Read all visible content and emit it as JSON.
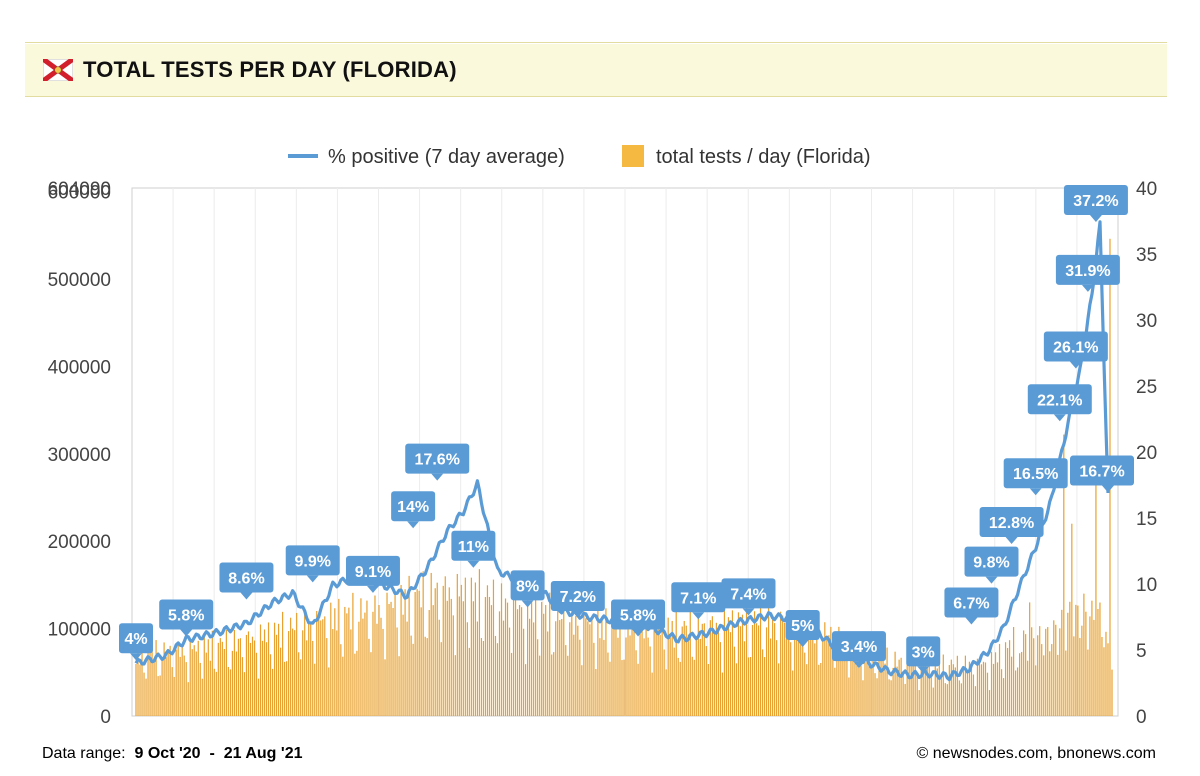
{
  "header": {
    "title": "TOTAL TESTS PER DAY (FLORIDA)",
    "flag_icon": "florida-flag-icon"
  },
  "footer": {
    "range_label": "Data range:",
    "range_start": "9 Oct '20",
    "range_sep": "-",
    "range_end": "21 Aug '21",
    "credit": "© newsnodes.com, bnonews.com"
  },
  "chart_data": {
    "type": "bar+line",
    "legend": [
      {
        "name": "% positive (7 day average)",
        "color": "#5b9bd5",
        "kind": "line"
      },
      {
        "name": "total tests / day (Florida)",
        "color": "#f5b942",
        "kind": "bar"
      }
    ],
    "legend_position": "top-center",
    "left_axis": {
      "ticks": [
        "0",
        "100000",
        "200000",
        "300000",
        "400000",
        "500000",
        "600000",
        "604090"
      ],
      "range": [
        0,
        604090
      ]
    },
    "right_axis": {
      "ticks": [
        "0",
        "5",
        "10",
        "15",
        "20",
        "25",
        "30",
        "35",
        "40"
      ],
      "range": [
        0,
        40
      ]
    },
    "bar_color": "#e8a12f",
    "line_color": "#5b9bd5",
    "grid": "vertical",
    "series_positive": [
      {
        "day": 0,
        "value": 4.0
      },
      {
        "day": 15,
        "value": 4.6
      },
      {
        "day": 25,
        "value": 5.8
      },
      {
        "day": 40,
        "value": 6.3
      },
      {
        "day": 55,
        "value": 7.0
      },
      {
        "day": 68,
        "value": 8.6
      },
      {
        "day": 78,
        "value": 9.3
      },
      {
        "day": 88,
        "value": 6.8
      },
      {
        "day": 98,
        "value": 9.9
      },
      {
        "day": 108,
        "value": 10.5
      },
      {
        "day": 122,
        "value": 10.0
      },
      {
        "day": 135,
        "value": 9.1
      },
      {
        "day": 145,
        "value": 11.2
      },
      {
        "day": 155,
        "value": 14.0
      },
      {
        "day": 163,
        "value": 15.5
      },
      {
        "day": 170,
        "value": 17.6
      },
      {
        "day": 180,
        "value": 11.0
      },
      {
        "day": 190,
        "value": 10.3
      },
      {
        "day": 200,
        "value": 9.8
      },
      {
        "day": 212,
        "value": 8.0
      },
      {
        "day": 225,
        "value": 7.5
      },
      {
        "day": 240,
        "value": 7.2
      },
      {
        "day": 255,
        "value": 6.8
      },
      {
        "day": 270,
        "value": 5.8
      },
      {
        "day": 285,
        "value": 6.3
      },
      {
        "day": 300,
        "value": 7.1
      },
      {
        "day": 315,
        "value": 7.6
      },
      {
        "day": 325,
        "value": 7.4
      },
      {
        "day": 338,
        "value": 6.5
      },
      {
        "day": 350,
        "value": 5.0
      },
      {
        "day": 362,
        "value": 4.2
      },
      {
        "day": 375,
        "value": 3.4
      },
      {
        "day": 385,
        "value": 3.1
      },
      {
        "day": 395,
        "value": 3.2
      },
      {
        "day": 405,
        "value": 3.0
      },
      {
        "day": 415,
        "value": 3.6
      },
      {
        "day": 425,
        "value": 5.0
      },
      {
        "day": 432,
        "value": 6.7
      },
      {
        "day": 440,
        "value": 9.8
      },
      {
        "day": 448,
        "value": 12.8
      },
      {
        "day": 456,
        "value": 16.5
      },
      {
        "day": 464,
        "value": 22.1
      },
      {
        "day": 470,
        "value": 26.1
      },
      {
        "day": 476,
        "value": 31.9
      },
      {
        "day": 480,
        "value": 37.2
      },
      {
        "day": 484,
        "value": 16.7
      }
    ],
    "data_labels": [
      {
        "day": 0,
        "value": 4.0,
        "text": "4%"
      },
      {
        "day": 25,
        "value": 5.8,
        "text": "5.8%"
      },
      {
        "day": 55,
        "value": 8.6,
        "text": "8.6%"
      },
      {
        "day": 88,
        "value": 9.9,
        "text": "9.9%"
      },
      {
        "day": 118,
        "value": 9.1,
        "text": "9.1%"
      },
      {
        "day": 138,
        "value": 14.0,
        "text": "14%"
      },
      {
        "day": 150,
        "value": 17.6,
        "text": "17.6%"
      },
      {
        "day": 168,
        "value": 11.0,
        "text": "11%"
      },
      {
        "day": 195,
        "value": 8.0,
        "text": "8%"
      },
      {
        "day": 220,
        "value": 7.2,
        "text": "7.2%"
      },
      {
        "day": 250,
        "value": 5.8,
        "text": "5.8%"
      },
      {
        "day": 280,
        "value": 7.1,
        "text": "7.1%"
      },
      {
        "day": 305,
        "value": 7.4,
        "text": "7.4%"
      },
      {
        "day": 332,
        "value": 5.0,
        "text": "5%"
      },
      {
        "day": 360,
        "value": 3.4,
        "text": "3.4%"
      },
      {
        "day": 392,
        "value": 3.0,
        "text": "3%"
      },
      {
        "day": 416,
        "value": 6.7,
        "text": "6.7%"
      },
      {
        "day": 426,
        "value": 9.8,
        "text": "9.8%"
      },
      {
        "day": 436,
        "value": 12.8,
        "text": "12.8%"
      },
      {
        "day": 448,
        "value": 16.5,
        "text": "16.5%"
      },
      {
        "day": 460,
        "value": 22.1,
        "text": "22.1%"
      },
      {
        "day": 468,
        "value": 26.1,
        "text": "26.1%"
      },
      {
        "day": 474,
        "value": 31.9,
        "text": "31.9%"
      },
      {
        "day": 478,
        "value": 37.2,
        "text": "37.2%"
      },
      {
        "day": 484,
        "value": 16.7,
        "text": "16.7%"
      }
    ],
    "series_tests_profile": [
      {
        "day": 0,
        "value": 70000
      },
      {
        "day": 30,
        "value": 78000
      },
      {
        "day": 60,
        "value": 90000
      },
      {
        "day": 90,
        "value": 110000
      },
      {
        "day": 120,
        "value": 122000
      },
      {
        "day": 150,
        "value": 145000
      },
      {
        "day": 170,
        "value": 140000
      },
      {
        "day": 200,
        "value": 120000
      },
      {
        "day": 230,
        "value": 105000
      },
      {
        "day": 260,
        "value": 98000
      },
      {
        "day": 290,
        "value": 105000
      },
      {
        "day": 320,
        "value": 110000
      },
      {
        "day": 350,
        "value": 90000
      },
      {
        "day": 375,
        "value": 65000
      },
      {
        "day": 400,
        "value": 58000
      },
      {
        "day": 425,
        "value": 62000
      },
      {
        "day": 440,
        "value": 90000
      },
      {
        "day": 455,
        "value": 96000
      },
      {
        "day": 465,
        "value": 120000
      },
      {
        "day": 480,
        "value": 120000
      },
      {
        "day": 486,
        "value": 60000
      }
    ],
    "tests_spikes": [
      {
        "day": 445,
        "value": 130000
      },
      {
        "day": 462,
        "value": 322000
      },
      {
        "day": 466,
        "value": 220000
      },
      {
        "day": 472,
        "value": 140000
      },
      {
        "day": 478,
        "value": 295000
      },
      {
        "day": 485,
        "value": 546000
      }
    ],
    "total_days": 487
  }
}
